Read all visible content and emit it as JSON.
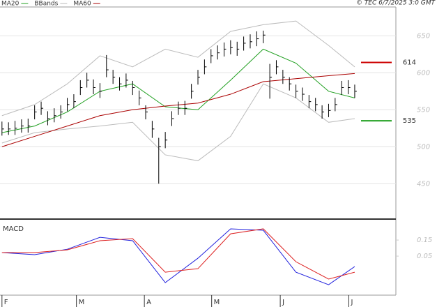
{
  "chart_data": [
    {
      "type": "ohlc",
      "copyright": "© TEC 6/7/2025 3:0 GMT",
      "ylim": [
        404,
        689
      ],
      "yticks": [
        450,
        500,
        550,
        600,
        650
      ],
      "grid": true,
      "xlim": [
        -0.3,
        60.3
      ],
      "xticks": [
        {
          "value": 0,
          "label": "F"
        },
        {
          "value": 11.4,
          "label": "M"
        },
        {
          "value": 21.8,
          "label": "A"
        },
        {
          "value": 32.1,
          "label": "M"
        },
        {
          "value": 42.6,
          "label": "J"
        },
        {
          "value": 53.1,
          "label": "J"
        }
      ],
      "bars": {
        "color": "#000000",
        "high": [
          534,
          533,
          535,
          537,
          538,
          556,
          561,
          548,
          552,
          556,
          566,
          571,
          590,
          600,
          591,
          586,
          624,
          604,
          594,
          599,
          589,
          576,
          556,
          535,
          512,
          520,
          548,
          561,
          562,
          585,
          604,
          618,
          632,
          637,
          641,
          644,
          642,
          649,
          652,
          656,
          657,
          612,
          617,
          604,
          594,
          584,
          580,
          570,
          566,
          556,
          558,
          566,
          589,
          590,
          584
        ],
        "low": [
          515,
          516,
          516,
          519,
          519,
          537,
          543,
          529,
          533,
          538,
          548,
          552,
          570,
          580,
          571,
          566,
          594,
          585,
          576,
          580,
          570,
          556,
          537,
          512,
          450,
          498,
          528,
          543,
          543,
          565,
          584,
          598,
          613,
          618,
          622,
          625,
          623,
          630,
          633,
          636,
          640,
          565,
          598,
          585,
          576,
          566,
          562,
          552,
          548,
          538,
          540,
          548,
          570,
          571,
          566
        ],
        "close": [
          524,
          524,
          525,
          528,
          528,
          547,
          552,
          538,
          542,
          547,
          557,
          561,
          580,
          590,
          580,
          575,
          604,
          594,
          585,
          590,
          580,
          566,
          547,
          524,
          500,
          509,
          538,
          552,
          552,
          575,
          594,
          608,
          623,
          627,
          632,
          634,
          632,
          640,
          642,
          646,
          651,
          594,
          608,
          594,
          585,
          575,
          571,
          561,
          557,
          547,
          549,
          557,
          580,
          580,
          575
        ]
      },
      "series": [
        {
          "name": "MA20",
          "color": "#22a022",
          "x": [
            0,
            5,
            10,
            15,
            20,
            25,
            30,
            35,
            40,
            45,
            50,
            54
          ],
          "values": [
            519,
            528,
            547,
            575,
            585,
            554,
            550,
            590,
            632,
            613,
            575,
            566
          ]
        },
        {
          "name": "BBands",
          "color": "#bbbbbb",
          "x": [
            0,
            5,
            10,
            15,
            20,
            25,
            30,
            35,
            40,
            45,
            50,
            54
          ],
          "values": [
            542,
            557,
            585,
            623,
            608,
            632,
            621,
            656,
            665,
            670,
            637,
            608
          ],
          "lower": [
            505,
            519,
            524,
            528,
            533,
            489,
            481,
            514,
            585,
            566,
            533,
            538
          ]
        },
        {
          "name": "MA60",
          "color": "#aa0000",
          "x": [
            0,
            5,
            10,
            15,
            20,
            25,
            30,
            35,
            40,
            45,
            50,
            54
          ],
          "values": [
            500,
            514,
            528,
            542,
            550,
            555,
            559,
            571,
            588,
            592,
            596,
            599
          ]
        }
      ],
      "levels": [
        {
          "value": 614,
          "color": "#cc0000"
        },
        {
          "value": 535,
          "color": "#22a022"
        }
      ]
    },
    {
      "type": "line",
      "title": "MACD",
      "ylim": [
        -0.193,
        0.272
      ],
      "yticks": [
        0.15,
        0.05
      ],
      "xlim": [
        -0.3,
        60.3
      ],
      "series": [
        {
          "color": "#2020dd",
          "x": [
            0,
            5,
            10,
            15,
            20,
            25,
            30,
            35,
            40,
            45,
            50,
            54
          ],
          "values": [
            0.072,
            0.059,
            0.093,
            0.167,
            0.146,
            -0.115,
            0.037,
            0.22,
            0.211,
            -0.05,
            -0.128,
            -0.015
          ]
        },
        {
          "color": "#dd2020",
          "x": [
            0,
            5,
            10,
            15,
            20,
            25,
            30,
            35,
            40,
            45,
            50,
            54
          ],
          "values": [
            0.072,
            0.072,
            0.089,
            0.146,
            0.159,
            -0.05,
            -0.028,
            0.189,
            0.22,
            0.015,
            -0.093,
            -0.05
          ]
        }
      ]
    }
  ]
}
